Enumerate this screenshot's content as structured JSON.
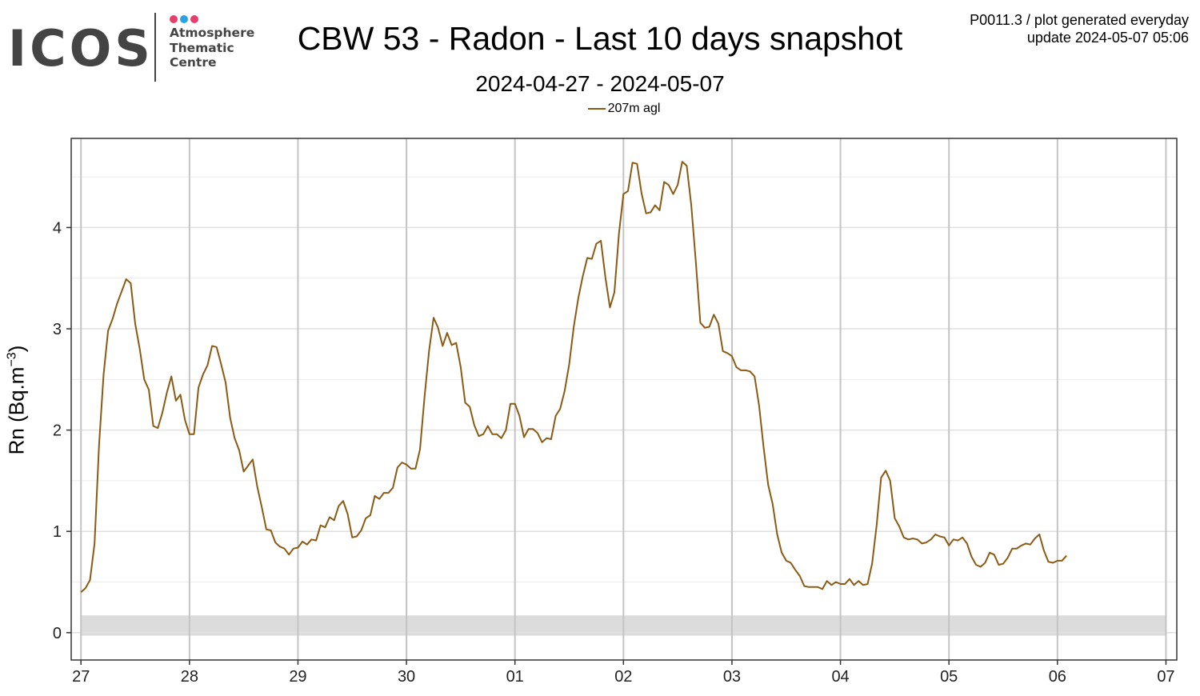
{
  "header": {
    "title": "CBW 53 - Radon - Last 10 days snapshot",
    "subtitle": "2024-04-27 - 2024-05-07",
    "meta_line1": "P0011.3 / plot generated everyday",
    "meta_line2": "update  2024-05-07 05:06"
  },
  "logo": {
    "wordmark": "ICOS",
    "line1": "Atmosphere",
    "line2": "Thematic",
    "line3": "Centre",
    "dot_colors": [
      "#e83e6c",
      "#2ba3e0",
      "#e83e6c"
    ]
  },
  "chart_data": {
    "type": "line",
    "title": "CBW 53 - Radon - Last 10 days snapshot",
    "subtitle": "2024-04-27 - 2024-05-07",
    "ylabel_main": "Rn (Bq.m",
    "ylabel_exp": "−3",
    "ylabel_close": ")",
    "ylim": [
      -0.27,
      4.88
    ],
    "xlim_days": [
      -0.09,
      10.1
    ],
    "x_unit": "days since 2024-04-27 00:00",
    "x_ticks": [
      {
        "day": 0,
        "label": "27"
      },
      {
        "day": 1,
        "label": "28"
      },
      {
        "day": 2,
        "label": "29"
      },
      {
        "day": 3,
        "label": "30"
      },
      {
        "day": 4,
        "label": "01"
      },
      {
        "day": 5,
        "label": "02"
      },
      {
        "day": 6,
        "label": "03"
      },
      {
        "day": 7,
        "label": "04"
      },
      {
        "day": 8,
        "label": "05"
      },
      {
        "day": 9,
        "label": "06"
      },
      {
        "day": 10,
        "label": "07"
      }
    ],
    "y_ticks": [
      0,
      1,
      2,
      3,
      4
    ],
    "y_minor": [
      0.5,
      1.5,
      2.5,
      3.5,
      4.5
    ],
    "background_band": {
      "from": -0.03,
      "to": 0.17,
      "color": "#dcdcdc"
    },
    "grid": true,
    "legend_position": "top-center",
    "series": [
      {
        "name": "207m agl",
        "color": "#8B5A14",
        "step_hours": 1,
        "values": [
          0.4,
          0.44,
          0.52,
          0.88,
          1.85,
          2.55,
          2.98,
          3.1,
          3.25,
          3.37,
          3.49,
          3.45,
          3.05,
          2.8,
          2.5,
          2.4,
          2.04,
          2.02,
          2.17,
          2.37,
          2.53,
          2.29,
          2.35,
          2.1,
          1.96,
          1.96,
          2.42,
          2.55,
          2.64,
          2.83,
          2.82,
          2.65,
          2.47,
          2.12,
          1.92,
          1.8,
          1.59,
          1.65,
          1.71,
          1.44,
          1.24,
          1.02,
          1.01,
          0.89,
          0.85,
          0.83,
          0.77,
          0.83,
          0.84,
          0.9,
          0.87,
          0.92,
          0.91,
          1.06,
          1.04,
          1.14,
          1.11,
          1.25,
          1.3,
          1.17,
          0.94,
          0.95,
          1.01,
          1.13,
          1.16,
          1.35,
          1.32,
          1.38,
          1.38,
          1.43,
          1.63,
          1.68,
          1.66,
          1.62,
          1.62,
          1.81,
          2.33,
          2.78,
          3.11,
          3.01,
          2.83,
          2.96,
          2.84,
          2.86,
          2.62,
          2.27,
          2.23,
          2.05,
          1.94,
          1.96,
          2.04,
          1.96,
          1.96,
          1.92,
          2.0,
          2.26,
          2.26,
          2.14,
          1.93,
          2.01,
          2.01,
          1.97,
          1.88,
          1.92,
          1.91,
          2.14,
          2.21,
          2.39,
          2.65,
          3.02,
          3.3,
          3.52,
          3.7,
          3.69,
          3.84,
          3.87,
          3.51,
          3.21,
          3.36,
          3.94,
          4.33,
          4.36,
          4.64,
          4.63,
          4.34,
          4.14,
          4.15,
          4.22,
          4.17,
          4.45,
          4.42,
          4.33,
          4.42,
          4.65,
          4.61,
          4.22,
          3.67,
          3.06,
          3.01,
          3.02,
          3.14,
          3.05,
          2.78,
          2.76,
          2.73,
          2.62,
          2.59,
          2.59,
          2.58,
          2.53,
          2.24,
          1.83,
          1.46,
          1.27,
          0.97,
          0.79,
          0.71,
          0.69,
          0.62,
          0.56,
          0.46,
          0.45,
          0.45,
          0.45,
          0.43,
          0.51,
          0.47,
          0.5,
          0.48,
          0.48,
          0.53,
          0.47,
          0.51,
          0.47,
          0.48,
          0.68,
          1.06,
          1.53,
          1.6,
          1.5,
          1.13,
          1.05,
          0.94,
          0.92,
          0.93,
          0.92,
          0.88,
          0.89,
          0.92,
          0.97,
          0.95,
          0.94,
          0.86,
          0.92,
          0.91,
          0.94,
          0.88,
          0.75,
          0.67,
          0.65,
          0.69,
          0.79,
          0.77,
          0.67,
          0.68,
          0.74,
          0.83,
          0.83,
          0.86,
          0.88,
          0.87,
          0.93,
          0.97,
          0.81,
          0.7,
          0.69,
          0.71,
          0.71,
          0.76
        ]
      }
    ]
  }
}
